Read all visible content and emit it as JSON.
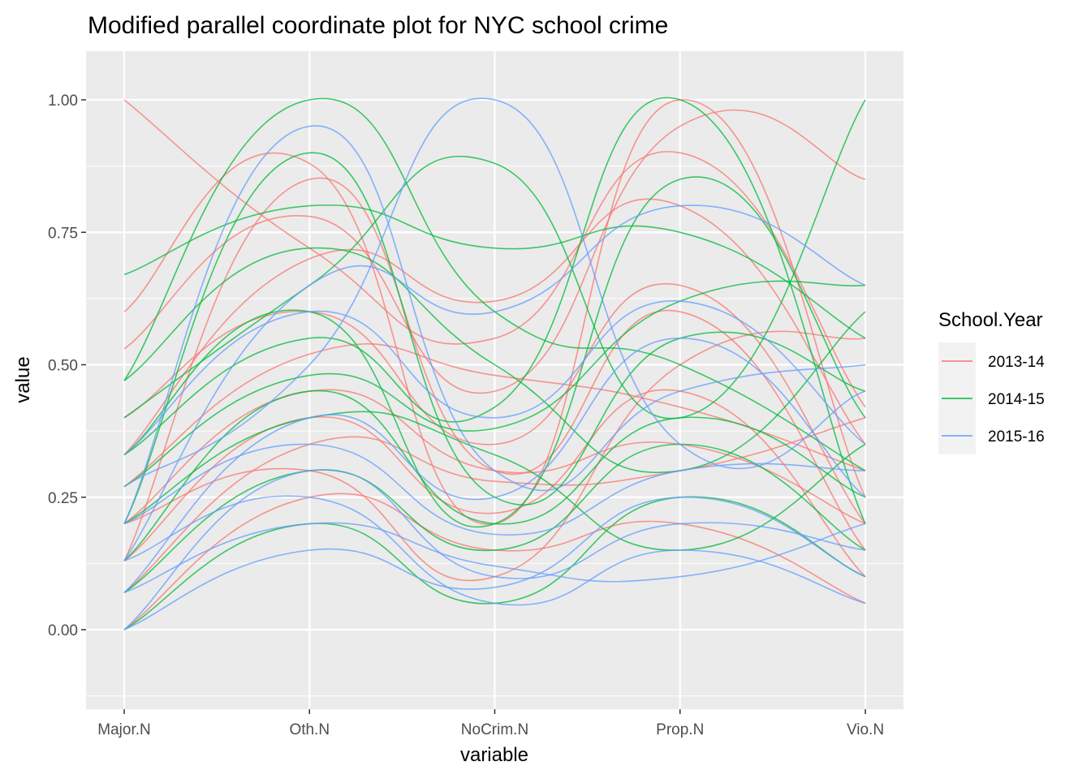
{
  "chart_data": {
    "type": "line",
    "subtype": "parallel-coordinates (smoothed curves)",
    "title": "Modified parallel coordinate plot for NYC school crime",
    "xlabel": "variable",
    "ylabel": "value",
    "categories": [
      "Major.N",
      "Oth.N",
      "NoCrim.N",
      "Prop.N",
      "Vio.N"
    ],
    "ylim": [
      -0.13,
      1.08
    ],
    "yticks": [
      0.0,
      0.25,
      0.5,
      0.75,
      1.0
    ],
    "ytick_labels": [
      "0.00",
      "0.25",
      "0.50",
      "0.75",
      "1.00"
    ],
    "grid": true,
    "background": "#ebebeb",
    "legend": {
      "title": "School.Year",
      "position": "right",
      "entries": [
        "2013-14",
        "2014-15",
        "2015-16"
      ]
    },
    "series": [
      {
        "name": "2013-14",
        "color": "#F8766D",
        "lines": [
          [
            1.0,
            0.72,
            0.55,
            0.9,
            0.42
          ],
          [
            0.6,
            0.88,
            0.2,
            1.0,
            0.25
          ],
          [
            0.53,
            0.78,
            0.45,
            0.95,
            0.85
          ],
          [
            0.33,
            0.7,
            0.62,
            0.8,
            0.35
          ],
          [
            0.27,
            0.52,
            0.48,
            0.42,
            0.3
          ],
          [
            0.2,
            0.45,
            0.3,
            0.35,
            0.2
          ],
          [
            0.13,
            0.4,
            0.22,
            0.45,
            0.1
          ],
          [
            0.07,
            0.35,
            0.28,
            0.3,
            0.4
          ],
          [
            0.4,
            0.6,
            0.35,
            0.65,
            0.2
          ],
          [
            0.2,
            0.3,
            0.1,
            0.5,
            0.55
          ],
          [
            0.0,
            0.25,
            0.15,
            0.2,
            0.05
          ],
          [
            0.13,
            0.85,
            0.3,
            0.6,
            0.15
          ]
        ]
      },
      {
        "name": "2014-15",
        "color": "#00BA38",
        "lines": [
          [
            0.67,
            0.8,
            0.72,
            0.75,
            0.55
          ],
          [
            0.47,
            1.0,
            0.6,
            0.5,
            0.3
          ],
          [
            0.4,
            0.65,
            0.88,
            0.4,
            1.0
          ],
          [
            0.33,
            0.55,
            0.42,
            1.0,
            0.2
          ],
          [
            0.27,
            0.48,
            0.38,
            0.62,
            0.65
          ],
          [
            0.2,
            0.9,
            0.25,
            0.55,
            0.45
          ],
          [
            0.47,
            0.72,
            0.5,
            0.3,
            0.6
          ],
          [
            0.13,
            0.45,
            0.2,
            0.4,
            0.25
          ],
          [
            0.07,
            0.3,
            0.15,
            0.35,
            0.15
          ],
          [
            0.0,
            0.2,
            0.05,
            0.25,
            0.1
          ],
          [
            0.33,
            0.6,
            0.2,
            0.85,
            0.4
          ],
          [
            0.2,
            0.4,
            0.33,
            0.15,
            0.35
          ]
        ]
      },
      {
        "name": "2015-16",
        "color": "#619CFF",
        "lines": [
          [
            0.2,
            0.95,
            0.3,
            0.45,
            0.5
          ],
          [
            0.27,
            0.5,
            1.0,
            0.35,
            0.45
          ],
          [
            0.13,
            0.65,
            0.6,
            0.8,
            0.65
          ],
          [
            0.07,
            0.4,
            0.25,
            0.55,
            0.25
          ],
          [
            0.0,
            0.3,
            0.1,
            0.2,
            0.15
          ],
          [
            0.13,
            0.25,
            0.05,
            0.15,
            0.05
          ],
          [
            0.07,
            0.2,
            0.12,
            0.1,
            0.2
          ],
          [
            0.0,
            0.15,
            0.08,
            0.25,
            0.1
          ],
          [
            0.2,
            0.35,
            0.18,
            0.3,
            0.3
          ],
          [
            0.33,
            0.6,
            0.4,
            0.62,
            0.35
          ]
        ]
      }
    ]
  }
}
